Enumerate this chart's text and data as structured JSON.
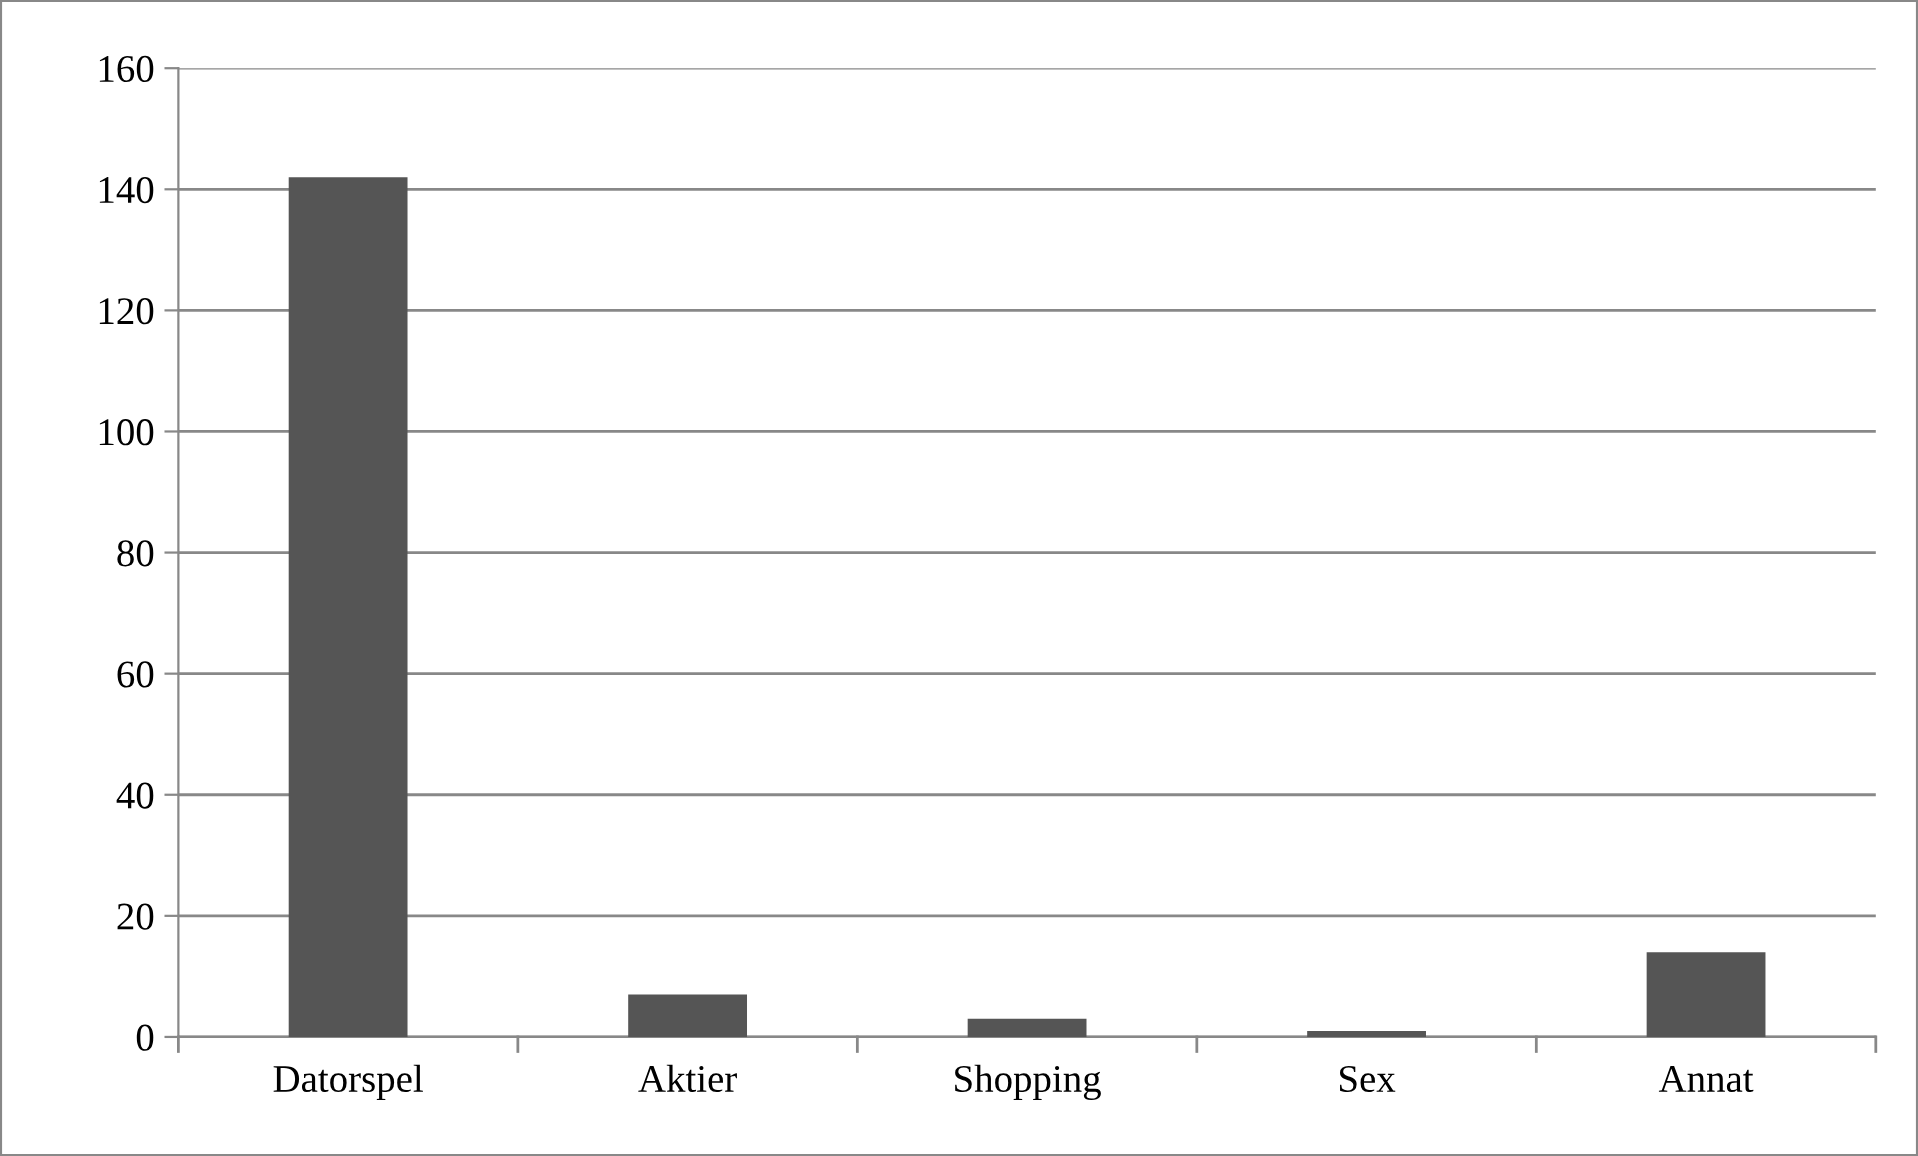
{
  "chart_data": {
    "type": "bar",
    "categories": [
      "Datorspel",
      "Aktier",
      "Shopping",
      "Sex",
      "Annat"
    ],
    "values": [
      142,
      7,
      3,
      1,
      14
    ],
    "color": "#555555",
    "ylim": [
      0,
      160
    ],
    "yticks": [
      0,
      20,
      40,
      60,
      80,
      100,
      120,
      140,
      160
    ],
    "grid": "y",
    "legend": false
  }
}
